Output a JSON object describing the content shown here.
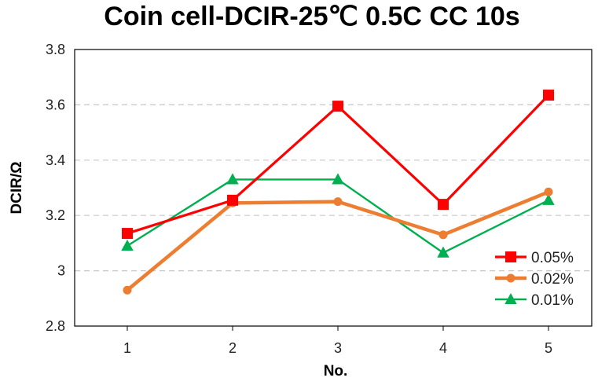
{
  "chart_data": {
    "type": "line",
    "title": "Coin cell-DCIR-25℃ 0.5C CC 10s",
    "xlabel": "No.",
    "ylabel": "DCIR/Ω",
    "x": [
      1,
      2,
      3,
      4,
      5
    ],
    "x_tick_labels": [
      "1",
      "2",
      "3",
      "4",
      "5"
    ],
    "ylim": [
      2.8,
      3.8
    ],
    "y_ticks": [
      2.8,
      3,
      3.2,
      3.4,
      3.6,
      3.8
    ],
    "y_tick_labels": [
      "2.8",
      "3",
      "3.2",
      "3.4",
      "3.6",
      "3.8"
    ],
    "grid": "horizontal dashed",
    "legend_position": "bottom-right",
    "series": [
      {
        "name": "0.05%",
        "color": "#ff0000",
        "marker": "square",
        "values": [
          3.135,
          3.255,
          3.595,
          3.24,
          3.635
        ]
      },
      {
        "name": "0.02%",
        "color": "#ed7d31",
        "marker": "circle",
        "values": [
          2.93,
          3.245,
          3.25,
          3.13,
          3.285
        ]
      },
      {
        "name": "0.01%",
        "color": "#00b050",
        "marker": "triangle",
        "values": [
          3.09,
          3.33,
          3.33,
          3.065,
          3.255
        ]
      }
    ]
  }
}
